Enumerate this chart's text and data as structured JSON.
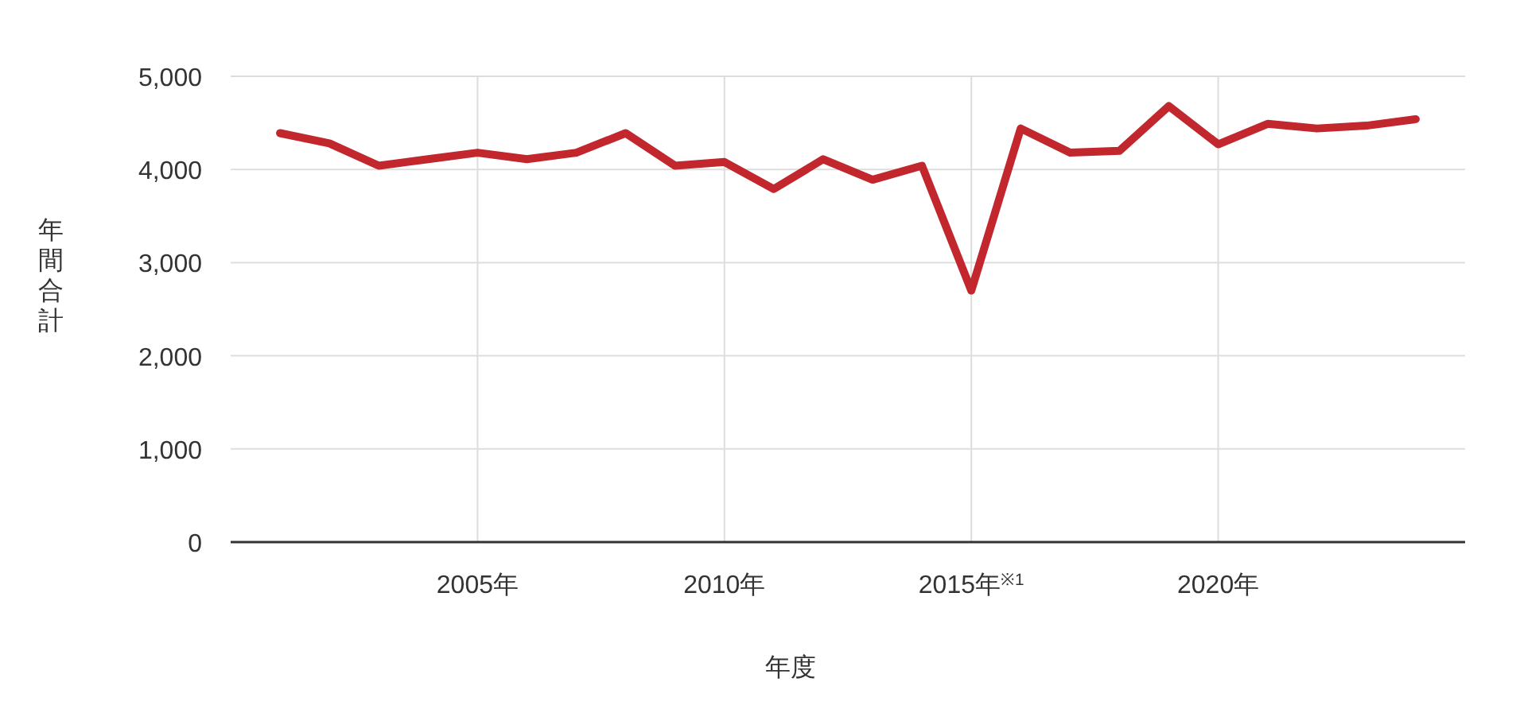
{
  "chart_data": {
    "type": "line",
    "xlabel": "年度",
    "ylabel": "年間合計",
    "x": [
      2001,
      2002,
      2003,
      2004,
      2005,
      2006,
      2007,
      2008,
      2009,
      2010,
      2011,
      2012,
      2013,
      2014,
      2015,
      2016,
      2017,
      2018,
      2019,
      2020,
      2021,
      2022,
      2023,
      2024
    ],
    "series": [
      {
        "color": "#c1272d",
        "values": [
          4390,
          4280,
          4040,
          4110,
          4180,
          4110,
          4180,
          4390,
          4040,
          4080,
          3790,
          4110,
          3890,
          4040,
          2700,
          4440,
          4180,
          4200,
          4680,
          4270,
          4490,
          4440,
          4470,
          4540
        ]
      }
    ],
    "xlim": [
      2000,
      2025
    ],
    "xticks": [
      {
        "value": 2005,
        "label": "2005年"
      },
      {
        "value": 2010,
        "label": "2010年"
      },
      {
        "value": 2015,
        "label": "2015年$^{※1}$"
      },
      {
        "value": 2020,
        "label": "2020年"
      }
    ],
    "ylim": [
      0,
      5000
    ],
    "yticks": [
      {
        "value": 0,
        "label": "0"
      },
      {
        "value": 1000,
        "label": "1,000"
      },
      {
        "value": 2000,
        "label": "2,000"
      },
      {
        "value": 3000,
        "label": "3,000"
      },
      {
        "value": 4000,
        "label": "4,000"
      },
      {
        "value": 5000,
        "label": "5,000"
      }
    ],
    "grid": true,
    "marker": "none",
    "line_style": "solid"
  }
}
